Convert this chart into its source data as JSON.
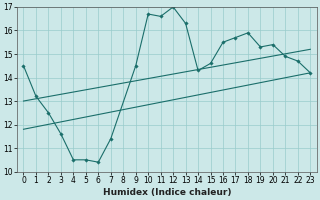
{
  "xlabel": "Humidex (Indice chaleur)",
  "xlim": [
    -0.5,
    23.5
  ],
  "ylim": [
    10,
    17
  ],
  "yticks": [
    10,
    11,
    12,
    13,
    14,
    15,
    16,
    17
  ],
  "xticks": [
    0,
    1,
    2,
    3,
    4,
    5,
    6,
    7,
    8,
    9,
    10,
    11,
    12,
    13,
    14,
    15,
    16,
    17,
    18,
    19,
    20,
    21,
    22,
    23
  ],
  "bg_color": "#cce8e8",
  "line_color": "#1a6e6a",
  "line1_x": [
    0,
    1,
    2,
    3,
    4,
    5,
    6,
    7,
    9,
    10,
    11,
    12,
    13,
    14,
    15,
    16,
    17,
    18,
    19,
    20,
    21,
    22,
    23
  ],
  "line1_y": [
    14.5,
    13.2,
    12.5,
    11.6,
    10.5,
    10.5,
    10.4,
    11.4,
    14.5,
    16.7,
    16.6,
    17.0,
    16.3,
    14.3,
    14.6,
    15.5,
    15.7,
    15.9,
    15.3,
    15.4,
    14.9,
    14.7,
    14.2
  ],
  "line2_x": [
    0,
    23
  ],
  "line2_y": [
    13.0,
    15.2
  ],
  "line3_x": [
    0,
    23
  ],
  "line3_y": [
    11.8,
    14.2
  ],
  "grid_color": "#99cccc",
  "tick_fontsize": 5.5,
  "xlabel_fontsize": 6.5
}
